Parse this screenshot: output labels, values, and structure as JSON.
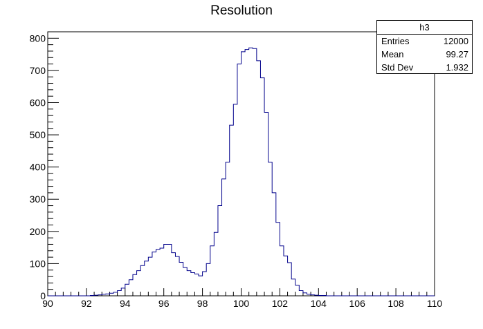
{
  "chart_data": {
    "type": "histogram",
    "title": "Resolution",
    "xlabel": "",
    "ylabel": "",
    "xlim": [
      90,
      110
    ],
    "ylim": [
      0,
      820
    ],
    "bin_width": 0.2,
    "bin_start": 90,
    "x_ticks": [
      90,
      92,
      94,
      96,
      98,
      100,
      102,
      104,
      106,
      108,
      110
    ],
    "y_ticks": [
      0,
      100,
      200,
      300,
      400,
      500,
      600,
      700,
      800
    ],
    "line_color": "#00008b",
    "values": [
      0,
      0,
      0,
      0,
      0,
      0,
      0,
      0,
      0,
      0,
      0,
      1,
      2,
      3,
      5,
      6,
      8,
      11,
      16,
      24,
      36,
      50,
      66,
      78,
      94,
      108,
      120,
      136,
      144,
      148,
      160,
      160,
      134,
      122,
      104,
      88,
      78,
      72,
      68,
      62,
      75,
      100,
      155,
      197,
      280,
      363,
      415,
      530,
      595,
      720,
      758,
      765,
      770,
      768,
      730,
      677,
      570,
      415,
      320,
      228,
      155,
      124,
      103,
      52,
      33,
      16,
      9,
      5,
      3,
      2,
      1,
      1,
      0,
      0,
      0,
      0,
      0,
      0,
      0,
      0,
      0,
      0,
      0,
      0,
      0,
      0,
      0,
      0,
      0,
      0,
      0,
      0,
      0,
      0,
      0,
      0,
      0,
      0,
      0,
      0
    ]
  },
  "stats": {
    "name": "h3",
    "rows": [
      {
        "label": "Entries",
        "value": "12000"
      },
      {
        "label": "Mean",
        "value": "99.27"
      },
      {
        "label": "Std Dev",
        "value": "1.932"
      }
    ]
  }
}
